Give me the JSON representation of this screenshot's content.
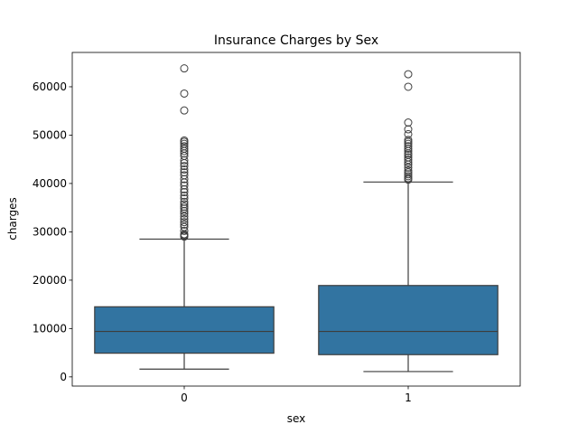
{
  "chart_data": {
    "type": "box",
    "title": "Insurance Charges by Sex",
    "xlabel": "sex",
    "ylabel": "charges",
    "categories": [
      "0",
      "1"
    ],
    "ylim": [
      -1900,
      67100
    ],
    "yticks": [
      0,
      10000,
      20000,
      30000,
      40000,
      50000,
      60000
    ],
    "ytick_labels": [
      "0",
      "10000",
      "20000",
      "30000",
      "40000",
      "50000",
      "60000"
    ],
    "grid": false,
    "colors": {
      "box": "#3274a1",
      "line": "#3d3d3d",
      "frame": "#000000"
    },
    "boxes": [
      {
        "category": "0",
        "whisker_low": 1600,
        "q1": 4900,
        "median": 9400,
        "q3": 14500,
        "whisker_high": 28500,
        "outliers": [
          29000,
          29200,
          29300,
          29500,
          30200,
          31000,
          31500,
          32000,
          32600,
          33200,
          33800,
          34300,
          34800,
          35200,
          35700,
          36200,
          36900,
          37500,
          38200,
          38800,
          39600,
          40200,
          40900,
          41700,
          42300,
          42900,
          43600,
          44200,
          44800,
          45700,
          46200,
          46700,
          47200,
          47700,
          48200,
          48600,
          48900,
          55100,
          58600,
          63800
        ]
      },
      {
        "category": "1",
        "whisker_low": 1100,
        "q1": 4600,
        "median": 9400,
        "q3": 18900,
        "whisker_high": 40300,
        "outliers": [
          40800,
          41100,
          41500,
          41900,
          42300,
          42700,
          43300,
          43900,
          44400,
          44900,
          45400,
          45900,
          46200,
          46700,
          47200,
          47700,
          48200,
          48600,
          49000,
          50200,
          51200,
          52600,
          60000,
          62600
        ]
      }
    ]
  }
}
